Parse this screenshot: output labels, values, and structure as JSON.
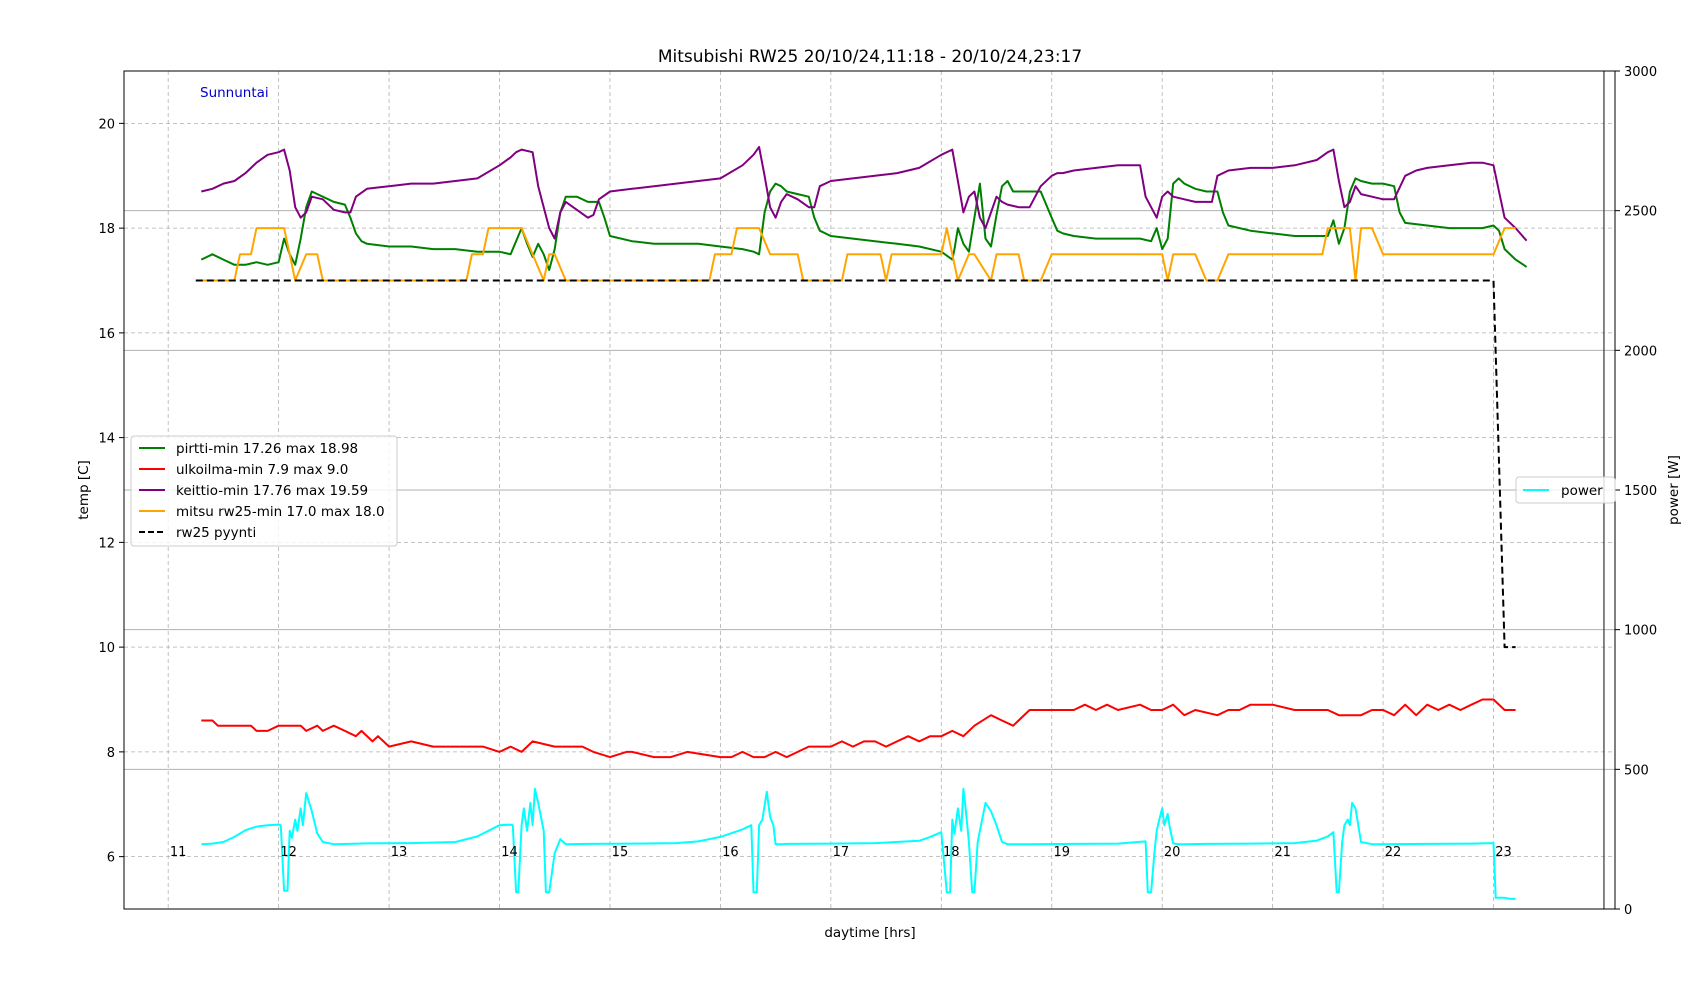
{
  "chart_data": {
    "type": "line",
    "title": "Mitsubishi RW25 20/10/24,11:18 - 20/10/24,23:17",
    "annotation": "Sunnuntai",
    "xlabel": "daytime [hrs]",
    "ylabel": "temp [C]",
    "ylabel_right": "power [W]",
    "xlim": [
      10.6,
      24.1
    ],
    "ylim": [
      5,
      21
    ],
    "ylim_right": [
      0,
      3000
    ],
    "vline_x": 24.0,
    "hour_labels": [
      "11",
      "12",
      "13",
      "14",
      "15",
      "16",
      "17",
      "18",
      "19",
      "20",
      "21",
      "22",
      "23"
    ],
    "y_ticks": [
      "6",
      "8",
      "10",
      "12",
      "14",
      "16",
      "18",
      "20"
    ],
    "y_ticks_right": [
      "0",
      "500",
      "1000",
      "1500",
      "2000",
      "2500",
      "3000"
    ],
    "series": [
      {
        "name": "pirtti-min 17.26 max 18.98",
        "color": "#008000",
        "x": [
          11.3,
          11.4,
          11.5,
          11.6,
          11.7,
          11.8,
          11.9,
          12.0,
          12.05,
          12.1,
          12.15,
          12.2,
          12.25,
          12.3,
          12.35,
          12.4,
          12.5,
          12.6,
          12.65,
          12.7,
          12.75,
          12.8,
          13.0,
          13.2,
          13.4,
          13.6,
          13.8,
          14.0,
          14.1,
          14.2,
          14.25,
          14.3,
          14.35,
          14.4,
          14.45,
          14.5,
          14.55,
          14.6,
          14.7,
          14.8,
          14.85,
          14.9,
          14.95,
          15.0,
          15.2,
          15.4,
          15.6,
          15.8,
          16.0,
          16.2,
          16.3,
          16.35,
          16.4,
          16.45,
          16.5,
          16.55,
          16.6,
          16.7,
          16.8,
          16.85,
          16.9,
          17.0,
          17.2,
          17.4,
          17.6,
          17.8,
          18.0,
          18.1,
          18.12,
          18.15,
          18.2,
          18.25,
          18.3,
          18.35,
          18.4,
          18.45,
          18.5,
          18.55,
          18.6,
          18.65,
          18.7,
          18.8,
          18.9,
          19.0,
          19.05,
          19.1,
          19.2,
          19.4,
          19.6,
          19.8,
          19.9,
          19.95,
          20.0,
          20.05,
          20.1,
          20.15,
          20.2,
          20.3,
          20.4,
          20.5,
          20.55,
          20.6,
          20.8,
          21.0,
          21.2,
          21.4,
          21.5,
          21.55,
          21.6,
          21.65,
          21.7,
          21.75,
          21.8,
          21.9,
          22.0,
          22.1,
          22.15,
          22.2,
          22.4,
          22.6,
          22.8,
          22.9,
          23.0,
          23.05,
          23.1,
          23.2,
          23.3
        ],
        "values": [
          17.4,
          17.5,
          17.4,
          17.3,
          17.3,
          17.35,
          17.3,
          17.35,
          17.8,
          17.5,
          17.3,
          17.8,
          18.4,
          18.7,
          18.65,
          18.6,
          18.5,
          18.45,
          18.2,
          17.9,
          17.75,
          17.7,
          17.65,
          17.65,
          17.6,
          17.6,
          17.55,
          17.55,
          17.5,
          18.0,
          17.7,
          17.45,
          17.7,
          17.5,
          17.2,
          17.6,
          18.3,
          18.6,
          18.6,
          18.5,
          18.5,
          18.5,
          18.2,
          17.85,
          17.75,
          17.7,
          17.7,
          17.7,
          17.65,
          17.6,
          17.55,
          17.5,
          18.3,
          18.7,
          18.85,
          18.8,
          18.7,
          18.65,
          18.6,
          18.2,
          17.95,
          17.85,
          17.8,
          17.75,
          17.7,
          17.65,
          17.55,
          17.4,
          17.6,
          18.0,
          17.7,
          17.55,
          18.2,
          18.85,
          17.8,
          17.65,
          18.25,
          18.8,
          18.9,
          18.7,
          18.7,
          18.7,
          18.7,
          18.2,
          17.95,
          17.9,
          17.85,
          17.8,
          17.8,
          17.8,
          17.75,
          18.0,
          17.6,
          17.8,
          18.85,
          18.95,
          18.85,
          18.75,
          18.7,
          18.7,
          18.3,
          18.05,
          17.95,
          17.9,
          17.85,
          17.85,
          17.85,
          18.15,
          17.7,
          18.0,
          18.7,
          18.95,
          18.9,
          18.85,
          18.85,
          18.8,
          18.3,
          18.1,
          18.05,
          18.0,
          18.0,
          18.0,
          18.05,
          17.95,
          17.6,
          17.4,
          17.26
        ]
      },
      {
        "name": "ulkoilma-min 7.9 max 9.0",
        "color": "#ff0000",
        "x": [
          11.3,
          11.4,
          11.45,
          11.6,
          11.75,
          11.8,
          11.9,
          12.0,
          12.2,
          12.25,
          12.35,
          12.4,
          12.5,
          12.6,
          12.7,
          12.75,
          12.85,
          12.9,
          13.0,
          13.2,
          13.4,
          13.6,
          13.8,
          13.85,
          14.0,
          14.1,
          14.2,
          14.3,
          14.5,
          14.65,
          14.75,
          14.85,
          15.0,
          15.15,
          15.2,
          15.4,
          15.5,
          15.55,
          15.7,
          16.0,
          16.1,
          16.2,
          16.3,
          16.4,
          16.5,
          16.6,
          16.7,
          16.8,
          17.0,
          17.1,
          17.2,
          17.3,
          17.4,
          17.5,
          17.6,
          17.7,
          17.8,
          17.9,
          18.0,
          18.1,
          18.2,
          18.3,
          18.45,
          18.55,
          18.65,
          18.8,
          19.0,
          19.1,
          19.2,
          19.3,
          19.4,
          19.5,
          19.6,
          19.8,
          19.9,
          20.0,
          20.1,
          20.2,
          20.3,
          20.5,
          20.6,
          20.7,
          20.8,
          21.0,
          21.2,
          21.3,
          21.5,
          21.6,
          21.8,
          21.9,
          22.0,
          22.1,
          22.2,
          22.3,
          22.4,
          22.5,
          22.6,
          22.7,
          22.8,
          22.9,
          23.0,
          23.1,
          23.2
        ],
        "values": [
          8.6,
          8.6,
          8.5,
          8.5,
          8.5,
          8.4,
          8.4,
          8.5,
          8.5,
          8.4,
          8.5,
          8.4,
          8.5,
          8.4,
          8.3,
          8.4,
          8.2,
          8.3,
          8.1,
          8.2,
          8.1,
          8.1,
          8.1,
          8.1,
          8.0,
          8.1,
          8.0,
          8.2,
          8.1,
          8.1,
          8.1,
          8.0,
          7.9,
          8.0,
          8.0,
          7.9,
          7.9,
          7.9,
          8.0,
          7.9,
          7.9,
          8.0,
          7.9,
          7.9,
          8.0,
          7.9,
          8.0,
          8.1,
          8.1,
          8.2,
          8.1,
          8.2,
          8.2,
          8.1,
          8.2,
          8.3,
          8.2,
          8.3,
          8.3,
          8.4,
          8.3,
          8.5,
          8.7,
          8.6,
          8.5,
          8.8,
          8.8,
          8.8,
          8.8,
          8.9,
          8.8,
          8.9,
          8.8,
          8.9,
          8.8,
          8.8,
          8.9,
          8.7,
          8.8,
          8.7,
          8.8,
          8.8,
          8.9,
          8.9,
          8.8,
          8.8,
          8.8,
          8.7,
          8.7,
          8.8,
          8.8,
          8.7,
          8.9,
          8.7,
          8.9,
          8.8,
          8.9,
          8.8,
          8.9,
          9.0,
          9.0,
          8.8,
          8.8
        ]
      },
      {
        "name": "keittio-min 17.76 max 19.59",
        "color": "#800080",
        "x": [
          11.3,
          11.4,
          11.5,
          11.6,
          11.7,
          11.8,
          11.9,
          12.0,
          12.05,
          12.1,
          12.15,
          12.2,
          12.25,
          12.3,
          12.4,
          12.5,
          12.6,
          12.65,
          12.7,
          12.8,
          13.0,
          13.2,
          13.4,
          13.6,
          13.8,
          14.0,
          14.1,
          14.15,
          14.2,
          14.3,
          14.35,
          14.4,
          14.45,
          14.5,
          14.55,
          14.6,
          14.7,
          14.8,
          14.85,
          14.9,
          15.0,
          15.2,
          15.4,
          15.6,
          15.8,
          16.0,
          16.2,
          16.3,
          16.35,
          16.4,
          16.45,
          16.5,
          16.55,
          16.6,
          16.7,
          16.8,
          16.85,
          16.9,
          17.0,
          17.2,
          17.4,
          17.6,
          17.8,
          18.0,
          18.1,
          18.15,
          18.2,
          18.25,
          18.3,
          18.35,
          18.4,
          18.45,
          18.5,
          18.55,
          18.6,
          18.7,
          18.8,
          18.9,
          19.0,
          19.05,
          19.1,
          19.2,
          19.4,
          19.6,
          19.8,
          19.85,
          19.95,
          20.0,
          20.05,
          20.1,
          20.2,
          20.3,
          20.45,
          20.5,
          20.6,
          20.8,
          21.0,
          21.2,
          21.4,
          21.5,
          21.55,
          21.6,
          21.65,
          21.7,
          21.75,
          21.8,
          21.9,
          22.0,
          22.1,
          22.2,
          22.3,
          22.4,
          22.6,
          22.8,
          22.9,
          23.0,
          23.05,
          23.1,
          23.2,
          23.3
        ],
        "values": [
          18.7,
          18.75,
          18.85,
          18.9,
          19.05,
          19.25,
          19.4,
          19.45,
          19.5,
          19.1,
          18.4,
          18.2,
          18.3,
          18.6,
          18.55,
          18.35,
          18.3,
          18.3,
          18.6,
          18.75,
          18.8,
          18.85,
          18.85,
          18.9,
          18.95,
          19.2,
          19.35,
          19.45,
          19.5,
          19.45,
          18.8,
          18.4,
          18.0,
          17.8,
          18.3,
          18.5,
          18.35,
          18.2,
          18.25,
          18.55,
          18.7,
          18.75,
          18.8,
          18.85,
          18.9,
          18.95,
          19.2,
          19.4,
          19.55,
          19.0,
          18.4,
          18.2,
          18.5,
          18.65,
          18.55,
          18.4,
          18.4,
          18.8,
          18.9,
          18.95,
          19.0,
          19.05,
          19.15,
          19.4,
          19.5,
          18.9,
          18.3,
          18.6,
          18.7,
          18.2,
          18.0,
          18.3,
          18.6,
          18.5,
          18.45,
          18.4,
          18.4,
          18.8,
          19.0,
          19.05,
          19.05,
          19.1,
          19.15,
          19.2,
          19.2,
          18.6,
          18.2,
          18.6,
          18.7,
          18.6,
          18.55,
          18.5,
          18.5,
          19.0,
          19.1,
          19.15,
          19.15,
          19.2,
          19.3,
          19.45,
          19.5,
          18.9,
          18.4,
          18.5,
          18.8,
          18.65,
          18.6,
          18.55,
          18.55,
          19.0,
          19.1,
          19.15,
          19.2,
          19.25,
          19.25,
          19.2,
          18.7,
          18.2,
          18.0,
          17.76
        ]
      },
      {
        "name": "mitsu rw25-min 17.0 max 18.0",
        "color": "#ffa500",
        "x": [
          11.25,
          11.6,
          11.65,
          11.75,
          11.8,
          11.9,
          12.05,
          12.1,
          12.15,
          12.25,
          12.3,
          12.35,
          12.4,
          12.5,
          13.0,
          13.5,
          13.7,
          13.75,
          13.85,
          13.9,
          14.1,
          14.2,
          14.3,
          14.4,
          14.45,
          14.5,
          14.6,
          14.65,
          15.0,
          15.5,
          15.9,
          15.95,
          16.1,
          16.15,
          16.35,
          16.45,
          16.5,
          16.7,
          16.75,
          17.0,
          17.1,
          17.15,
          17.2,
          17.45,
          17.5,
          17.55,
          17.6,
          17.9,
          18.0,
          18.05,
          18.1,
          18.15,
          18.25,
          18.3,
          18.45,
          18.5,
          18.55,
          18.7,
          18.75,
          18.9,
          19.0,
          19.1,
          19.5,
          20.0,
          20.05,
          20.1,
          20.3,
          20.4,
          20.5,
          20.6,
          21.0,
          21.2,
          21.45,
          21.5,
          21.7,
          21.75,
          21.8,
          21.9,
          22.0,
          22.05,
          22.4,
          22.9,
          23.0,
          23.1,
          23.2
        ],
        "values": [
          17.0,
          17.0,
          17.5,
          17.5,
          18.0,
          18.0,
          18.0,
          17.5,
          17.0,
          17.5,
          17.5,
          17.5,
          17.0,
          17.0,
          17.0,
          17.0,
          17.0,
          17.5,
          17.5,
          18.0,
          18.0,
          18.0,
          17.5,
          17.0,
          17.5,
          17.5,
          17.0,
          17.0,
          17.0,
          17.0,
          17.0,
          17.5,
          17.5,
          18.0,
          18.0,
          17.5,
          17.5,
          17.5,
          17.0,
          17.0,
          17.0,
          17.5,
          17.5,
          17.5,
          17.0,
          17.5,
          17.5,
          17.5,
          17.5,
          18.0,
          17.5,
          17.0,
          17.5,
          17.5,
          17.0,
          17.5,
          17.5,
          17.5,
          17.0,
          17.0,
          17.5,
          17.5,
          17.5,
          17.5,
          17.0,
          17.5,
          17.5,
          17.0,
          17.0,
          17.5,
          17.5,
          17.5,
          17.5,
          18.0,
          18.0,
          17.0,
          18.0,
          18.0,
          17.5,
          17.5,
          17.5,
          17.5,
          17.5,
          18.0,
          18.0
        ]
      },
      {
        "name": "rw25 pyynti",
        "color": "#000000",
        "dashed": true,
        "x": [
          11.25,
          23.0,
          23.1,
          23.15,
          23.2
        ],
        "values": [
          17.0,
          17.0,
          10.0,
          10.0,
          10.0
        ]
      }
    ],
    "power_series": {
      "name": "power",
      "color": "#00ffff",
      "x": [
        11.3,
        11.4,
        11.5,
        11.6,
        11.7,
        11.8,
        11.9,
        12.0,
        12.02,
        12.05,
        12.08,
        12.1,
        12.12,
        12.15,
        12.17,
        12.2,
        12.22,
        12.25,
        12.3,
        12.35,
        12.4,
        12.5,
        12.8,
        13.2,
        13.6,
        13.8,
        14.0,
        14.1,
        14.12,
        14.15,
        14.17,
        14.2,
        14.22,
        14.25,
        14.28,
        14.3,
        14.32,
        14.35,
        14.37,
        14.4,
        14.42,
        14.45,
        14.5,
        14.55,
        14.6,
        14.8,
        15.2,
        15.6,
        15.8,
        16.0,
        16.2,
        16.28,
        16.3,
        16.33,
        16.35,
        16.38,
        16.4,
        16.42,
        16.45,
        16.48,
        16.5,
        16.55,
        16.6,
        17.0,
        17.4,
        17.8,
        17.9,
        18.0,
        18.05,
        18.08,
        18.1,
        18.12,
        18.15,
        18.18,
        18.2,
        18.22,
        18.25,
        18.28,
        18.3,
        18.33,
        18.35,
        18.4,
        18.45,
        18.5,
        18.55,
        18.6,
        18.8,
        19.2,
        19.6,
        19.85,
        19.87,
        19.9,
        19.93,
        19.95,
        19.98,
        20.0,
        20.02,
        20.05,
        20.07,
        20.1,
        20.15,
        20.2,
        20.4,
        20.8,
        21.2,
        21.4,
        21.5,
        21.55,
        21.58,
        21.6,
        21.63,
        21.65,
        21.68,
        21.7,
        21.72,
        21.75,
        21.8,
        21.9,
        22.0,
        22.4,
        22.8,
        23.0,
        23.02,
        23.05,
        23.1,
        23.15,
        23.2
      ],
      "values": [
        232,
        234,
        240,
        258,
        282,
        295,
        300,
        302,
        300,
        65,
        65,
        280,
        255,
        320,
        280,
        360,
        300,
        415,
        350,
        270,
        240,
        232,
        235,
        236,
        240,
        260,
        300,
        302,
        300,
        60,
        60,
        300,
        360,
        280,
        380,
        300,
        430,
        380,
        340,
        280,
        60,
        60,
        200,
        250,
        232,
        233,
        234,
        236,
        242,
        258,
        285,
        300,
        60,
        60,
        300,
        320,
        370,
        420,
        330,
        300,
        232,
        232,
        233,
        234,
        236,
        244,
        258,
        275,
        60,
        60,
        320,
        270,
        360,
        280,
        430,
        360,
        240,
        60,
        60,
        240,
        280,
        380,
        350,
        300,
        240,
        232,
        232,
        233,
        234,
        242,
        60,
        60,
        200,
        280,
        330,
        360,
        300,
        340,
        290,
        235,
        232,
        232,
        233,
        234,
        236,
        245,
        260,
        275,
        60,
        60,
        240,
        300,
        320,
        300,
        380,
        360,
        240,
        232,
        232,
        233,
        234,
        236,
        40,
        40,
        40,
        36,
        36
      ]
    }
  }
}
